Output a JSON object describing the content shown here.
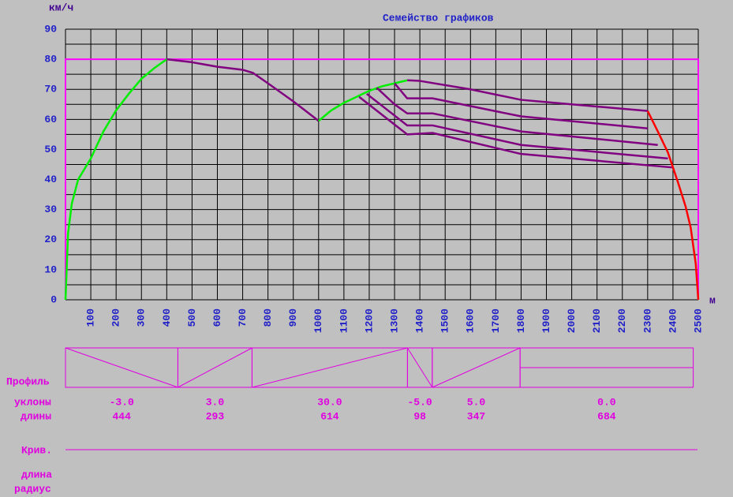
{
  "chart_data": {
    "type": "line",
    "title": "Семейство графиков",
    "y_label": "км/ч",
    "x_label": "м",
    "xlim": [
      0,
      2500
    ],
    "ylim": [
      0,
      90
    ],
    "xticks": [
      100,
      200,
      300,
      400,
      500,
      600,
      700,
      800,
      900,
      1000,
      1100,
      1200,
      1300,
      1400,
      1500,
      1600,
      1700,
      1800,
      1900,
      2000,
      2100,
      2200,
      2300,
      2400,
      2500
    ],
    "yticks": [
      0,
      10,
      20,
      30,
      40,
      50,
      60,
      70,
      80,
      90
    ],
    "grid": true,
    "speed_limit": 80,
    "speed_limit_color": "#ff00ff",
    "series": [
      {
        "color": "#00ee00",
        "x": [
          0,
          10,
          25,
          50,
          100,
          150,
          200,
          250,
          300,
          350,
          400
        ],
        "values": [
          0,
          22,
          32,
          40,
          47,
          56,
          63,
          68.5,
          73.5,
          77,
          80
        ]
      },
      {
        "color": "#800080",
        "x": [
          400,
          500,
          600,
          700,
          740,
          800,
          900,
          1000
        ],
        "values": [
          80,
          79,
          77.5,
          76.5,
          75.5,
          72,
          66,
          59.5
        ]
      },
      {
        "color": "#00ee00",
        "x": [
          1000,
          1050,
          1100,
          1150,
          1200,
          1250,
          1300,
          1350
        ],
        "values": [
          59.5,
          63,
          65.5,
          67.5,
          69.5,
          71,
          72,
          73
        ]
      },
      {
        "color": "#800080",
        "x": [
          1350,
          1400,
          1600,
          1800,
          2000,
          2300
        ],
        "values": [
          73,
          72.8,
          70,
          66.5,
          65,
          62.8
        ]
      },
      {
        "color": "#800080",
        "x": [
          1300,
          1350,
          1450,
          1800,
          2300
        ],
        "values": [
          72,
          67,
          67,
          61,
          57
        ]
      },
      {
        "color": "#800080",
        "x": [
          1230,
          1300,
          1350,
          1450,
          1800,
          2340
        ],
        "values": [
          70.5,
          65,
          62,
          62,
          56,
          51.5
        ]
      },
      {
        "color": "#800080",
        "x": [
          1190,
          1350,
          1450,
          1800,
          2380
        ],
        "values": [
          68.5,
          58,
          58,
          51.5,
          47
        ]
      },
      {
        "color": "#800080",
        "x": [
          1160,
          1350,
          1450,
          1800,
          2400
        ],
        "values": [
          67.5,
          55,
          55.5,
          48.5,
          44
        ]
      },
      {
        "color": "#ff0000",
        "x": [
          2300,
          2340,
          2380,
          2400,
          2420,
          2450,
          2470,
          2490,
          2500
        ],
        "values": [
          62.8,
          56,
          49,
          44,
          39,
          31,
          24,
          12,
          0
        ]
      }
    ]
  },
  "profile": {
    "label": "Профиль",
    "grades_label": "уклоны",
    "lengths_label": "длины",
    "segments": [
      {
        "grade": "-3.0",
        "length": 444
      },
      {
        "grade": "3.0",
        "length": 293
      },
      {
        "grade": "30.0",
        "length": 614
      },
      {
        "grade": "-5.0",
        "length": 98
      },
      {
        "grade": "5.0",
        "length": 347
      },
      {
        "grade": "0.0",
        "length": 684
      }
    ]
  },
  "curves": {
    "label": "Крив.",
    "length_label": "длина",
    "radius_label": "радиус"
  }
}
